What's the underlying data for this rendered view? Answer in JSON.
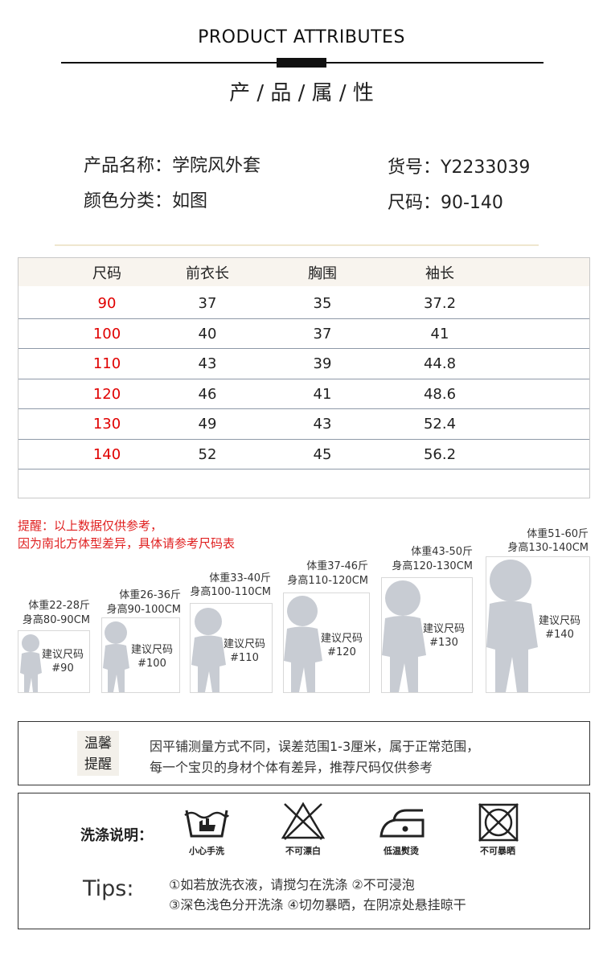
{
  "header": {
    "title_en": "PRODUCT ATTRIBUTES",
    "title_cn": "产 / 品 / 属 / 性"
  },
  "attributes": {
    "name": "产品名称：学院风外套",
    "item_no": "货号：Y2233039",
    "color": "颜色分类：如图",
    "size": "尺码：90-140"
  },
  "size_table": {
    "headers": [
      "尺码",
      "前衣长",
      "胸围",
      "袖长"
    ],
    "rows": [
      [
        "90",
        "37",
        "35",
        "37.2"
      ],
      [
        "100",
        "40",
        "37",
        "41"
      ],
      [
        "110",
        "43",
        "39",
        "44.8"
      ],
      [
        "120",
        "46",
        "41",
        "48.6"
      ],
      [
        "130",
        "49",
        "43",
        "52.4"
      ],
      [
        "140",
        "52",
        "45",
        "56.2"
      ]
    ]
  },
  "reminder": {
    "line1": "提醒：以上数据仅供参考，",
    "line2": "因为南北方体型差异，具体请参考尺码表"
  },
  "size_guide": {
    "recommend_label": "建议尺码",
    "figures": [
      {
        "weight": "体重22-28斤",
        "height": "身高80-90CM",
        "size": "#90"
      },
      {
        "weight": "体重26-36斤",
        "height": "身高90-100CM",
        "size": "#100"
      },
      {
        "weight": "体重33-40斤",
        "height": "身高100-110CM",
        "size": "#110"
      },
      {
        "weight": "体重37-46斤",
        "height": "身高110-120CM",
        "size": "#120"
      },
      {
        "weight": "体重43-50斤",
        "height": "身高120-130CM",
        "size": "#130"
      },
      {
        "weight": "体重51-60斤",
        "height": "身高130-140CM",
        "size": "#140"
      }
    ]
  },
  "warm_tip": {
    "badge_line1": "温馨",
    "badge_line2": "提醒",
    "text1": "因平铺测量方式不同，误差范围1-3厘米，属于正常范围，",
    "text2": "每一个宝贝的身材个体有差异，推荐尺码仅供参考"
  },
  "wash": {
    "title": "洗涤说明：",
    "icons": [
      {
        "icon": "hand-wash-icon",
        "label": "小心手洗"
      },
      {
        "icon": "no-bleach-icon",
        "label": "不可漂白"
      },
      {
        "icon": "low-iron-icon",
        "label": "低温熨烫"
      },
      {
        "icon": "no-tumble-dry-icon",
        "label": "不可暴晒"
      }
    ],
    "tips_title": "Tips:",
    "tips_line1": "①如若放洗衣液，请搅匀在洗涤 ②不可浸泡",
    "tips_line2": "③深色浅色分开洗涤 ④切勿暴晒，在阴凉处悬挂晾干"
  },
  "colors": {
    "size_red": "#e00000",
    "reminder_red": "#e02020",
    "table_header_bg": "#f8f4ee",
    "figure_gray": "#c8ccd3"
  }
}
